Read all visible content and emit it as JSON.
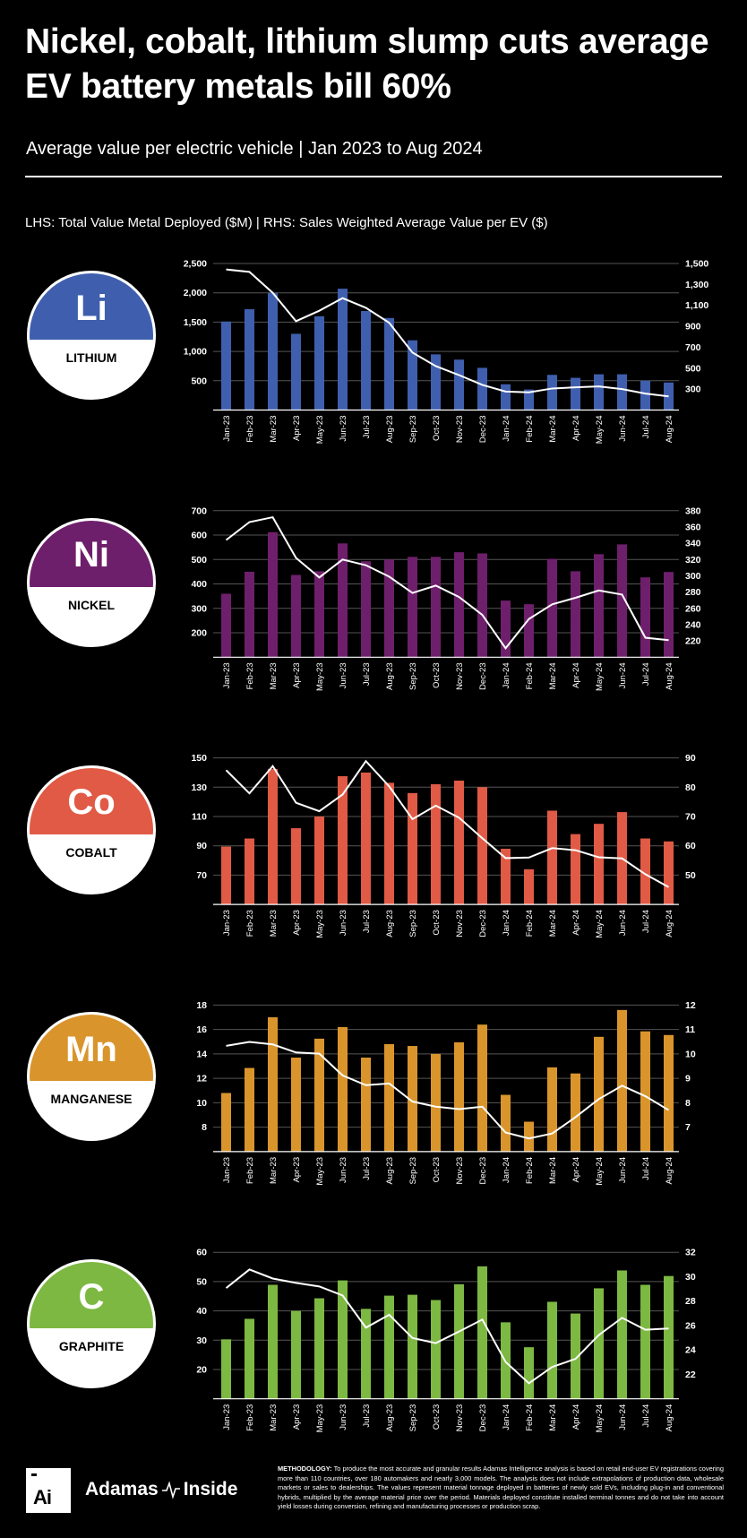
{
  "header": {
    "title": "Nickel, cobalt, lithium slump cuts average EV battery metals bill 60%",
    "subtitle": "Average value per electric vehicle | Jan 2023 to Aug 2024",
    "axis_note": "LHS: Total Value Metal Deployed ($M) |  RHS: Sales Weighted Average Value per EV ($)"
  },
  "footer": {
    "logo_text": "Ai",
    "brand_left": "Adamas",
    "brand_right": "Inside",
    "methodology_label": "METHODOLOGY:",
    "methodology_text": "To produce the most accurate and granular results Adamas Intelligence analysis is based on retail end-user EV registrations covering more than 110 countries, over 180 automakers and nearly 3,000 models. The analysis does not include extrapolations of production data, wholesale markets or sales to dealerships. The values represent material tonnage deployed in batteries of newly sold EVs, including plug-in and conventional hybrids, multiplied by the average material price over the period. Materials deployed constitute installed terminal tonnes and do not take into account yield losses during conversion, refining and manufacturing processes or production scrap."
  },
  "chart_data": [
    {
      "type": "bar+line",
      "symbol": "Li",
      "name": "LITHIUM",
      "color": "#3f5fae",
      "categories": [
        "Jan-23",
        "Feb-23",
        "Mar-23",
        "Apr-23",
        "May-23",
        "Jun-23",
        "Jul-23",
        "Aug-23",
        "Sep-23",
        "Oct-23",
        "Nov-23",
        "Dec-23",
        "Jan-24",
        "Feb-24",
        "Mar-24",
        "Apr-24",
        "May-24",
        "Jun-24",
        "Jul-24",
        "Aug-24"
      ],
      "bars": [
        1510,
        1720,
        2000,
        1300,
        1600,
        2070,
        1690,
        1570,
        1190,
        950,
        860,
        720,
        440,
        350,
        600,
        550,
        610,
        610,
        500,
        470
      ],
      "line": [
        1443,
        1420,
        1220,
        949,
        1049,
        1169,
        1077,
        934,
        649,
        520,
        434,
        340,
        277,
        269,
        306,
        317,
        326,
        300,
        257,
        231
      ],
      "lhs_ticks": [
        "500",
        "1,000",
        "1,500",
        "2,000",
        "2,500"
      ],
      "lhs_tick_values": [
        500,
        1000,
        1500,
        2000,
        2500
      ],
      "lhs_ylim": [
        0,
        2500
      ],
      "rhs_ticks": [
        "300",
        "500",
        "700",
        "900",
        "1,100",
        "1,300",
        "1,500"
      ],
      "rhs_tick_values": [
        300,
        500,
        700,
        900,
        1100,
        1300,
        1500
      ],
      "rhs_ylim": [
        100,
        1500
      ],
      "grid": true
    },
    {
      "type": "bar+line",
      "symbol": "Ni",
      "name": "NICKEL",
      "color": "#6e1f6b",
      "categories": [
        "Jan-23",
        "Feb-23",
        "Mar-23",
        "Apr-23",
        "May-23",
        "Jun-23",
        "Jul-23",
        "Aug-23",
        "Sep-23",
        "Oct-23",
        "Nov-23",
        "Dec-23",
        "Jan-24",
        "Feb-24",
        "Mar-24",
        "Apr-24",
        "May-24",
        "Jun-24",
        "Jul-24",
        "Aug-24"
      ],
      "bars": [
        360,
        450,
        612,
        437,
        452,
        566,
        493,
        500,
        511,
        511,
        530,
        525,
        332,
        317,
        503,
        452,
        522,
        562,
        427,
        449
      ],
      "line": [
        344,
        366,
        372,
        322,
        298,
        320,
        313,
        299,
        279,
        288,
        274,
        252,
        211,
        247,
        265,
        273,
        282,
        277,
        224,
        221
      ],
      "lhs_ticks": [
        "200",
        "300",
        "400",
        "500",
        "600",
        "700"
      ],
      "lhs_tick_values": [
        200,
        300,
        400,
        500,
        600,
        700
      ],
      "lhs_ylim": [
        100,
        700
      ],
      "rhs_ticks": [
        "220",
        "240",
        "260",
        "280",
        "300",
        "320",
        "340",
        "360",
        "380"
      ],
      "rhs_tick_values": [
        220,
        240,
        260,
        280,
        300,
        320,
        340,
        360,
        380
      ],
      "rhs_ylim": [
        200,
        380
      ],
      "grid": true
    },
    {
      "type": "bar+line",
      "symbol": "Co",
      "name": "COBALT",
      "color": "#e05a45",
      "categories": [
        "Jan-23",
        "Feb-23",
        "Mar-23",
        "Apr-23",
        "May-23",
        "Jun-23",
        "Jul-23",
        "Aug-23",
        "Sep-23",
        "Oct-23",
        "Nov-23",
        "Dec-23",
        "Jan-24",
        "Feb-24",
        "Mar-24",
        "Apr-24",
        "May-24",
        "Jun-24",
        "Jul-24",
        "Aug-24"
      ],
      "bars": [
        89.5,
        95,
        142.5,
        102,
        110,
        137.5,
        140,
        133,
        126,
        132,
        134.5,
        130,
        88,
        74,
        114,
        98,
        105,
        113,
        95,
        93
      ],
      "line": [
        85.8,
        77.9,
        87.2,
        74.7,
        71.8,
        77.5,
        88.9,
        80.3,
        69.1,
        73.7,
        69.6,
        62.6,
        55.8,
        56,
        59.2,
        58.5,
        56.1,
        55.7,
        50.3,
        45.9
      ],
      "lhs_ticks": [
        "70",
        "90",
        "110",
        "130",
        "150"
      ],
      "lhs_tick_values": [
        70,
        90,
        110,
        130,
        150
      ],
      "lhs_ylim": [
        50,
        150
      ],
      "rhs_ticks": [
        "50",
        "60",
        "70",
        "80",
        "90"
      ],
      "rhs_tick_values": [
        50,
        60,
        70,
        80,
        90
      ],
      "rhs_ylim": [
        40,
        90
      ],
      "grid": true
    },
    {
      "type": "bar+line",
      "symbol": "Mn",
      "name": "MANGANESE",
      "color": "#d9952c",
      "categories": [
        "Jan-23",
        "Feb-23",
        "Mar-23",
        "Apr-23",
        "May-23",
        "Jun-23",
        "Jul-23",
        "Aug-23",
        "Sep-23",
        "Oct-23",
        "Nov-23",
        "Dec-23",
        "Jan-24",
        "Feb-24",
        "Mar-24",
        "Apr-24",
        "May-24",
        "Jun-24",
        "Jul-24",
        "Aug-24"
      ],
      "bars": [
        10.8,
        12.85,
        17,
        13.7,
        15.25,
        16.2,
        13.7,
        14.8,
        14.65,
        14,
        14.95,
        16.4,
        10.65,
        8.45,
        12.9,
        12.4,
        15.4,
        17.6,
        15.85,
        15.55
      ],
      "line": [
        10.33,
        10.49,
        10.39,
        10.06,
        10.01,
        9.12,
        8.72,
        8.79,
        8.05,
        7.84,
        7.74,
        7.84,
        6.78,
        6.54,
        6.74,
        7.41,
        8.15,
        8.7,
        8.27,
        7.7
      ],
      "lhs_ticks": [
        "8",
        "10",
        "12",
        "14",
        "16",
        "18"
      ],
      "lhs_tick_values": [
        8,
        10,
        12,
        14,
        16,
        18
      ],
      "lhs_ylim": [
        6,
        18
      ],
      "rhs_ticks": [
        "7",
        "8",
        "9",
        "10",
        "11",
        "12"
      ],
      "rhs_tick_values": [
        7,
        8,
        9,
        10,
        11,
        12
      ],
      "rhs_ylim": [
        6,
        12
      ],
      "grid": true
    },
    {
      "type": "bar+line",
      "symbol": "C",
      "name": "GRAPHITE",
      "color": "#7db842",
      "categories": [
        "Jan-23",
        "Feb-23",
        "Mar-23",
        "Apr-23",
        "May-23",
        "Jun-23",
        "Jul-23",
        "Aug-23",
        "Sep-23",
        "Oct-23",
        "Nov-23",
        "Dec-23",
        "Jan-24",
        "Feb-24",
        "Mar-24",
        "Apr-24",
        "May-24",
        "Jun-24",
        "Jul-24",
        "Aug-24"
      ],
      "bars": [
        30.3,
        37.3,
        48.9,
        40,
        44.3,
        50.4,
        40.7,
        45.2,
        45.5,
        43.7,
        49.1,
        55.2,
        36.1,
        27.6,
        43.1,
        39.1,
        47.7,
        53.8,
        48.9,
        51.9
      ],
      "line": [
        29.07,
        30.59,
        29.85,
        29.49,
        29.2,
        28.46,
        25.83,
        26.88,
        24.98,
        24.56,
        25.51,
        26.49,
        23.02,
        21.27,
        22.61,
        23.27,
        25.22,
        26.63,
        25.66,
        25.76
      ],
      "lhs_ticks": [
        "20",
        "30",
        "40",
        "50",
        "60"
      ],
      "lhs_tick_values": [
        20,
        30,
        40,
        50,
        60
      ],
      "lhs_ylim": [
        10,
        60
      ],
      "rhs_ticks": [
        "22",
        "24",
        "26",
        "28",
        "30",
        "32"
      ],
      "rhs_tick_values": [
        22,
        24,
        26,
        28,
        30,
        32
      ],
      "rhs_ylim": [
        20,
        32
      ],
      "grid": true
    }
  ]
}
